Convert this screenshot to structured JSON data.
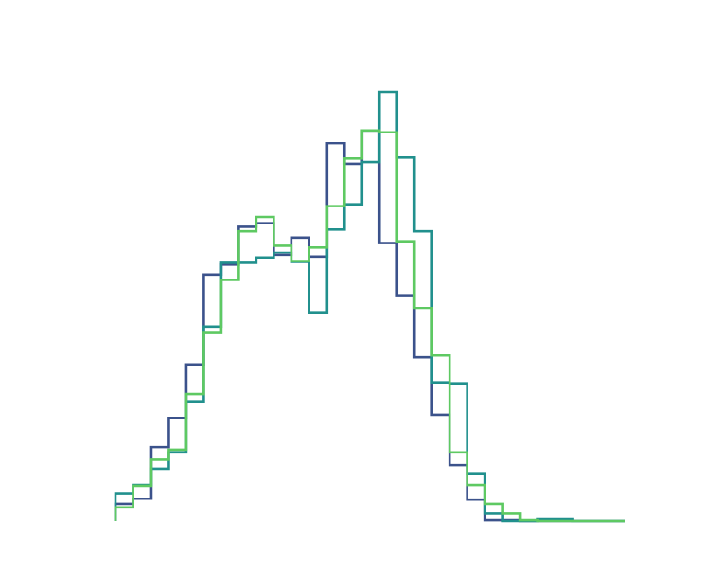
{
  "chart_data": {
    "type": "histogram",
    "bin_edges": [
      0,
      1,
      2,
      3,
      4,
      5,
      6,
      7,
      8,
      9,
      10,
      11,
      12,
      13,
      14,
      15,
      16,
      17,
      18,
      19,
      20,
      21,
      22,
      23,
      24,
      25,
      26,
      27,
      28,
      29
    ],
    "ylim": [
      0,
      500
    ],
    "grid": false,
    "axes_visible": false,
    "legend": "none",
    "series": [
      {
        "color": "#3b528b",
        "values": [
          20,
          26,
          86,
          120,
          182,
          287,
          299,
          343,
          347,
          310,
          330,
          308,
          440,
          416,
          455,
          324,
          263,
          191,
          124,
          65,
          25,
          1,
          1,
          0,
          0,
          0,
          0,
          0,
          0
        ]
      },
      {
        "color": "#21908d",
        "values": [
          32,
          42,
          61,
          80,
          139,
          226,
          301,
          301,
          307,
          313,
          302,
          243,
          340,
          369,
          418,
          500,
          424,
          338,
          161,
          160,
          55,
          9,
          0,
          0,
          2,
          2,
          0,
          0,
          0
        ]
      },
      {
        "color": "#5ec962",
        "values": [
          16,
          41,
          72,
          83,
          148,
          220,
          281,
          338,
          354,
          321,
          303,
          319,
          367,
          423,
          455,
          453,
          326,
          248,
          193,
          80,
          42,
          20,
          9,
          1,
          0,
          0,
          0,
          0,
          0
        ]
      }
    ]
  }
}
